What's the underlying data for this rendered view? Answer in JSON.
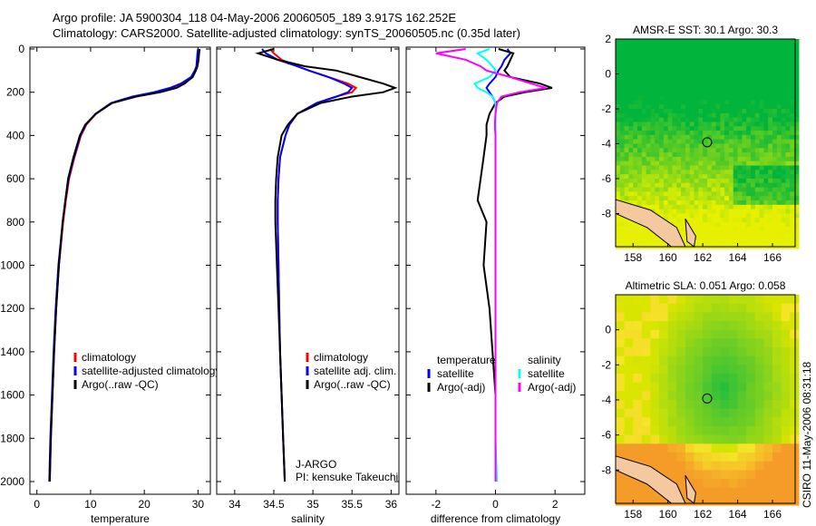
{
  "title_line1": "Argo profile: JA 5900304_118 04-May-2006 20060505_189 3.917S 162.252E",
  "title_line2": "Climatology: CARS2000. Satellite-adjusted climatology: synTS_20060505.nc (0.35d later)",
  "side_label": "CSIRO 11-May-2006 08:31:18",
  "colors": {
    "climatology": "#ff0000",
    "satellite": "#0000ff",
    "argo": "#000000",
    "sal_satellite": "#00ffff",
    "sal_argo": "#ff00ff"
  },
  "chart_data": [
    {
      "type": "line",
      "id": "temperature",
      "xlabel": "temperature",
      "ylabel": "depth",
      "xlim": [
        -1.3,
        32.3
      ],
      "ylim": [
        2060,
        0
      ],
      "xticks": [
        0,
        10,
        20,
        30
      ],
      "yticks": [
        0,
        200,
        400,
        600,
        800,
        1000,
        1200,
        1400,
        1600,
        1800,
        2000
      ],
      "depths": [
        0,
        20,
        50,
        80,
        100,
        130,
        160,
        180,
        200,
        220,
        250,
        300,
        350,
        400,
        500,
        600,
        700,
        800,
        1000,
        1200,
        1400,
        1600,
        1800,
        2000
      ],
      "series": [
        {
          "name": "climatology",
          "color": "#ff0000",
          "values": [
            30.2,
            30.1,
            30,
            29.8,
            29.5,
            28.8,
            27,
            25,
            22,
            18,
            14,
            11,
            9.2,
            8.2,
            7,
            6,
            5.4,
            4.9,
            4.1,
            3.6,
            3.2,
            2.9,
            2.6,
            2.4
          ]
        },
        {
          "name": "satellite-adjusted climatology",
          "color": "#0000ff",
          "values": [
            30.0,
            29.9,
            29.8,
            29.7,
            29.4,
            28.7,
            26.8,
            24.8,
            21.8,
            17.8,
            13.8,
            10.9,
            9.1,
            8.1,
            6.9,
            5.9,
            5.3,
            4.8,
            4.0,
            3.5,
            3.1,
            2.8,
            2.5,
            2.3
          ]
        },
        {
          "name": "Argo(..raw -QC)",
          "color": "#000000",
          "values": [
            30.3,
            30.2,
            30.1,
            29.9,
            29.6,
            29,
            27.5,
            26,
            23,
            18.5,
            14,
            11,
            9,
            8,
            6.8,
            5.8,
            5.3,
            4.8,
            4.1,
            3.6,
            3.2,
            2.9,
            2.6,
            2.4
          ]
        }
      ],
      "legend": [
        "climatology",
        "satellite-adjusted climatology",
        "Argo(..raw -QC)"
      ]
    },
    {
      "type": "line",
      "id": "salinity",
      "xlabel": "salinity",
      "xlim": [
        33.77,
        36.1
      ],
      "ylim": [
        2060,
        0
      ],
      "xticks": [
        34,
        34.5,
        35,
        35.5,
        36
      ],
      "depths": [
        0,
        20,
        50,
        80,
        100,
        130,
        160,
        180,
        200,
        220,
        250,
        300,
        350,
        400,
        500,
        600,
        700,
        800,
        1000,
        1200,
        1400,
        1600,
        1800,
        2000
      ],
      "series": [
        {
          "name": "climatology",
          "color": "#ff0000",
          "values": [
            34.45,
            34.5,
            34.6,
            34.8,
            34.95,
            35.2,
            35.45,
            35.55,
            35.5,
            35.3,
            35.05,
            34.8,
            34.7,
            34.65,
            34.58,
            34.56,
            34.55,
            34.55,
            34.56,
            34.57,
            34.58,
            34.6,
            34.62,
            34.64
          ]
        },
        {
          "name": "satellite adj. clim.",
          "color": "#0000ff",
          "values": [
            34.35,
            34.4,
            34.55,
            34.8,
            34.95,
            35.2,
            35.4,
            35.5,
            35.45,
            35.3,
            35.05,
            34.8,
            34.7,
            34.65,
            34.58,
            34.56,
            34.55,
            34.55,
            34.56,
            34.57,
            34.58,
            34.6,
            34.62,
            34.64
          ]
        },
        {
          "name": "Argo(..raw -QC)",
          "color": "#000000",
          "values": [
            34.5,
            34.3,
            34.55,
            34.9,
            35.3,
            35.6,
            35.9,
            36.05,
            35.9,
            35.5,
            35.1,
            34.8,
            34.68,
            34.6,
            34.55,
            34.53,
            34.52,
            34.52,
            34.54,
            34.56,
            34.58,
            34.6,
            34.62,
            34.64
          ]
        }
      ],
      "legend": [
        "climatology",
        "satellite adj. clim.",
        "Argo(..raw -QC)"
      ],
      "annotation": [
        "J-ARGO",
        "PI: kensuke Takeuchi"
      ]
    },
    {
      "type": "line",
      "id": "difference",
      "xlabel": "difference from climatology",
      "xlim": [
        -3,
        3
      ],
      "ylim": [
        2060,
        0
      ],
      "xticks": [
        -2,
        0,
        2
      ],
      "depths": [
        0,
        20,
        50,
        80,
        100,
        130,
        160,
        180,
        200,
        220,
        250,
        300,
        350,
        400,
        500,
        600,
        700,
        800,
        1000,
        1200,
        1400,
        1600,
        1800,
        2000
      ],
      "series": [
        {
          "name": "temperature satellite",
          "color": "#0000ff",
          "values": [
            0.4,
            0.5,
            0.3,
            0.2,
            0.1,
            0,
            -0.2,
            -0.3,
            -0.2,
            -0.1,
            0,
            0,
            0,
            0,
            0,
            0,
            0,
            0,
            0,
            0,
            0,
            0,
            0,
            0
          ]
        },
        {
          "name": "temperature Argo(-adj)",
          "color": "#000000",
          "values": [
            0.1,
            0.6,
            0.5,
            0.4,
            0.3,
            0.5,
            1.5,
            1.9,
            1.0,
            0.3,
            0,
            -0.2,
            -0.3,
            -0.3,
            -0.4,
            -0.5,
            -0.6,
            -0.3,
            -0.4,
            -0.2,
            -0.1,
            0,
            0,
            0
          ]
        },
        {
          "name": "salinity satellite",
          "color": "#00ffff",
          "values": [
            -0.2,
            -0.6,
            -0.3,
            -0.1,
            0,
            -0.2,
            -0.7,
            -0.6,
            -0.3,
            -0.1,
            0,
            0,
            0,
            0,
            0,
            0,
            0,
            0,
            0,
            0,
            0,
            0,
            0,
            0.05
          ]
        },
        {
          "name": "salinity Argo(-adj)",
          "color": "#ff00ff",
          "values": [
            -1.0,
            -2.0,
            -1.0,
            -0.5,
            -0.3,
            0.5,
            1.2,
            1.7,
            0.8,
            0.2,
            0.05,
            0,
            -0.02,
            0,
            0,
            0,
            0,
            0,
            0,
            0,
            0,
            0,
            0,
            0
          ]
        }
      ],
      "legend_headers": [
        "temperature",
        "salinity"
      ],
      "legend": [
        "satellite",
        "Argo(-adj)",
        "satellite",
        "Argo(-adj)"
      ]
    },
    {
      "type": "heatmap",
      "id": "sst_map",
      "title": "AMSR-E SST: 30.1 Argo: 30.3",
      "xlim": [
        157,
        167.3
      ],
      "ylim": [
        -9.9,
        2
      ],
      "xticks": [
        158,
        160,
        162,
        164,
        166
      ],
      "yticks": [
        0,
        -2,
        -4,
        -6,
        -8
      ],
      "float_position": {
        "lon": 162.252,
        "lat": -3.917
      }
    },
    {
      "type": "heatmap",
      "id": "sla_map",
      "title": "Altimetric SLA: 0.051 Argo: 0.058",
      "xlim": [
        157,
        167.3
      ],
      "ylim": [
        -9.9,
        2
      ],
      "xticks": [
        158,
        160,
        162,
        164,
        166
      ],
      "yticks": [
        0,
        -2,
        -4,
        -6,
        -8
      ],
      "float_position": {
        "lon": 162.252,
        "lat": -3.917
      }
    }
  ]
}
